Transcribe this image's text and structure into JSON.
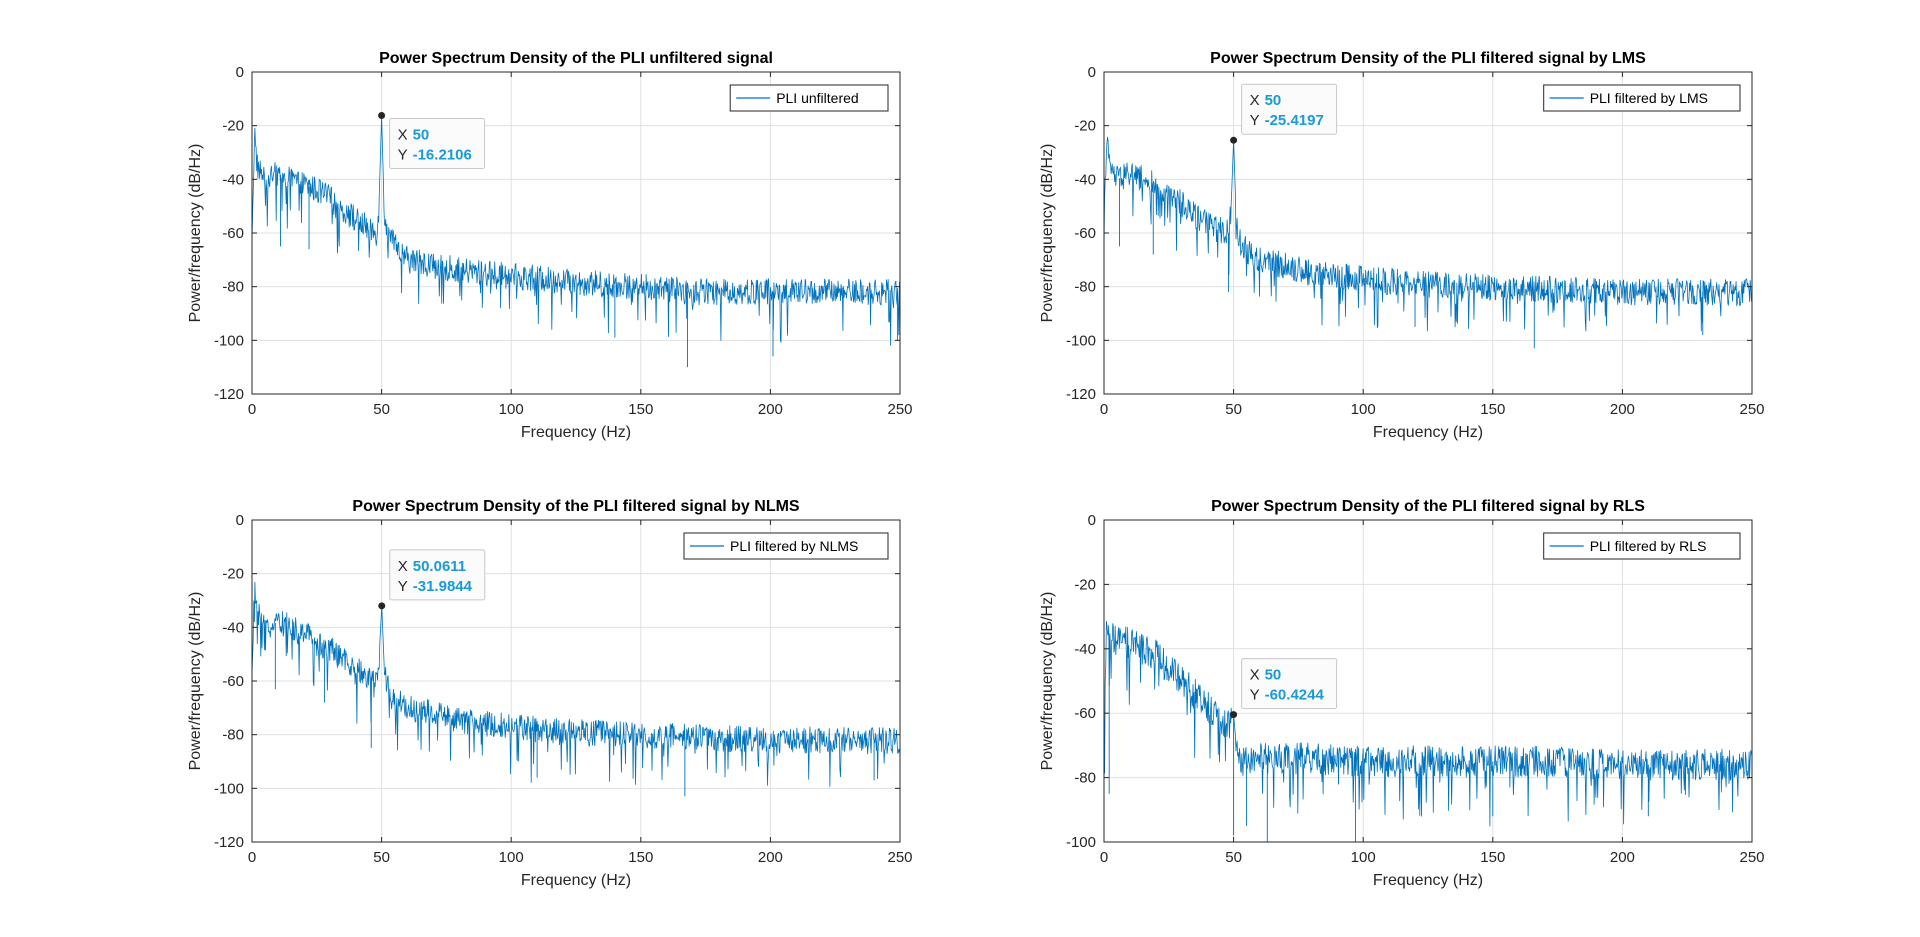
{
  "figure": {
    "background": "#ffffff"
  },
  "style": {
    "series_color": "#0072bd",
    "datatip_value_color": "#1a9ad6",
    "axis_color": "#262626",
    "grid_color": "#e0e0e0"
  },
  "chart_data": [
    {
      "type": "line",
      "title": "Power Spectrum Density of the PLI unfiltered signal",
      "xlabel": "Frequency (Hz)",
      "ylabel": "Power/frequency (dB/Hz)",
      "xlim": [
        0,
        250
      ],
      "ylim": [
        -120,
        0
      ],
      "xticks": [
        0,
        50,
        100,
        150,
        200,
        250
      ],
      "yticks": [
        0,
        -20,
        -40,
        -60,
        -80,
        -100,
        -120
      ],
      "grid": true,
      "legend": {
        "position": "top-right",
        "entries": [
          "PLI unfiltered"
        ]
      },
      "series": [
        {
          "name": "PLI unfiltered",
          "x": [
            0,
            1,
            2,
            5,
            10,
            15,
            20,
            25,
            30,
            35,
            40,
            45,
            48,
            49,
            50,
            51,
            52,
            55,
            60,
            70,
            80,
            100,
            120,
            150,
            170,
            200,
            225,
            250
          ],
          "values": [
            -60,
            -22,
            -35,
            -40,
            -38,
            -40,
            -42,
            -44,
            -47,
            -51,
            -55,
            -58,
            -60,
            -50,
            -16.2,
            -52,
            -60,
            -65,
            -70,
            -72,
            -74,
            -76,
            -78,
            -80,
            -82,
            -82,
            -82,
            -82
          ]
        }
      ],
      "datatip": {
        "x_label": "X",
        "y_label": "Y",
        "x": "50",
        "y": "-16.2106"
      },
      "min_spikes": [
        [
          11,
          -65
        ],
        [
          22,
          -66
        ],
        [
          33,
          -67
        ],
        [
          140,
          -99
        ],
        [
          168,
          -110
        ],
        [
          201,
          -106
        ],
        [
          249,
          -100
        ]
      ]
    },
    {
      "type": "line",
      "title": "Power Spectrum Density of the PLI filtered signal by LMS",
      "xlabel": "Frequency (Hz)",
      "ylabel": "Power/frequency (dB/Hz)",
      "xlim": [
        0,
        250
      ],
      "ylim": [
        -120,
        0
      ],
      "xticks": [
        0,
        50,
        100,
        150,
        200,
        250
      ],
      "yticks": [
        0,
        -20,
        -40,
        -60,
        -80,
        -100,
        -120
      ],
      "grid": true,
      "legend": {
        "position": "top-right",
        "entries": [
          "PLI filtered by LMS"
        ]
      },
      "series": [
        {
          "name": "PLI filtered by LMS",
          "x": [
            0,
            1,
            2,
            5,
            10,
            15,
            20,
            25,
            30,
            35,
            40,
            45,
            48,
            49,
            50,
            51,
            52,
            55,
            60,
            70,
            80,
            100,
            120,
            150,
            170,
            200,
            225,
            250
          ],
          "values": [
            -60,
            -22,
            -35,
            -40,
            -38,
            -40,
            -42,
            -45,
            -49,
            -53,
            -57,
            -59,
            -60,
            -52,
            -25.4,
            -55,
            -62,
            -66,
            -70,
            -72,
            -75,
            -77,
            -79,
            -80,
            -81,
            -82,
            -82,
            -82
          ]
        }
      ],
      "datatip": {
        "x_label": "X",
        "y_label": "Y",
        "x": "50",
        "y": "-25.4197"
      },
      "min_spikes": [
        [
          6,
          -65
        ],
        [
          19,
          -68
        ],
        [
          48,
          -82
        ],
        [
          120,
          -95
        ],
        [
          166,
          -103
        ],
        [
          231,
          -98
        ]
      ]
    },
    {
      "type": "line",
      "title": "Power Spectrum Density of the PLI filtered signal by NLMS",
      "xlabel": "Frequency (Hz)",
      "ylabel": "Power/frequency (dB/Hz)",
      "xlim": [
        0,
        250
      ],
      "ylim": [
        -120,
        0
      ],
      "xticks": [
        0,
        50,
        100,
        150,
        200,
        250
      ],
      "yticks": [
        0,
        -20,
        -40,
        -60,
        -80,
        -100,
        -120
      ],
      "grid": true,
      "legend": {
        "position": "top-right",
        "entries": [
          "PLI filtered by NLMS"
        ]
      },
      "series": [
        {
          "name": "PLI filtered by NLMS",
          "x": [
            0,
            1,
            2,
            5,
            10,
            15,
            20,
            25,
            30,
            35,
            40,
            45,
            48,
            49,
            50.0611,
            51,
            52,
            55,
            60,
            70,
            80,
            100,
            120,
            150,
            170,
            200,
            225,
            250
          ],
          "values": [
            -60,
            -22,
            -35,
            -40,
            -38,
            -40,
            -42,
            -45,
            -48,
            -52,
            -56,
            -58,
            -60,
            -52,
            -31.98,
            -55,
            -62,
            -66,
            -70,
            -72,
            -75,
            -77,
            -79,
            -80,
            -81,
            -82,
            -82,
            -82
          ]
        }
      ],
      "datatip": {
        "x_label": "X",
        "y_label": "Y",
        "x": "50.0611",
        "y": "-31.9844"
      },
      "min_spikes": [
        [
          9,
          -63
        ],
        [
          28,
          -68
        ],
        [
          46,
          -85
        ],
        [
          110,
          -96
        ],
        [
          167,
          -103
        ],
        [
          240,
          -97
        ]
      ]
    },
    {
      "type": "line",
      "title": "Power Spectrum Density of the PLI filtered signal by RLS",
      "xlabel": "Frequency (Hz)",
      "ylabel": "Power/frequency (dB/Hz)",
      "xlim": [
        0,
        250
      ],
      "ylim": [
        -100,
        0
      ],
      "xticks": [
        0,
        50,
        100,
        150,
        200,
        250
      ],
      "yticks": [
        0,
        -20,
        -40,
        -60,
        -80,
        -100
      ],
      "grid": true,
      "legend": {
        "position": "top-right",
        "entries": [
          "PLI filtered by RLS"
        ]
      },
      "series": [
        {
          "name": "PLI filtered by RLS",
          "x": [
            0,
            1,
            2,
            5,
            10,
            15,
            20,
            25,
            30,
            35,
            40,
            45,
            48,
            49,
            50,
            51,
            52,
            55,
            60,
            70,
            80,
            100,
            120,
            150,
            170,
            200,
            225,
            250
          ],
          "values": [
            -70,
            -30,
            -36,
            -38,
            -38,
            -40,
            -42,
            -46,
            -50,
            -54,
            -58,
            -62,
            -64,
            -62,
            -60.4,
            -70,
            -74,
            -75,
            -74,
            -74,
            -74,
            -75,
            -75,
            -75,
            -75,
            -76,
            -76,
            -76
          ]
        }
      ],
      "datatip": {
        "x_label": "X",
        "y_label": "Y",
        "x": "50",
        "y": "-60.4244"
      },
      "min_spikes": [
        [
          2,
          -85
        ],
        [
          50,
          -98
        ],
        [
          55,
          -95
        ],
        [
          63,
          -100
        ],
        [
          97,
          -100
        ],
        [
          150,
          -92
        ],
        [
          210,
          -92
        ]
      ]
    }
  ]
}
